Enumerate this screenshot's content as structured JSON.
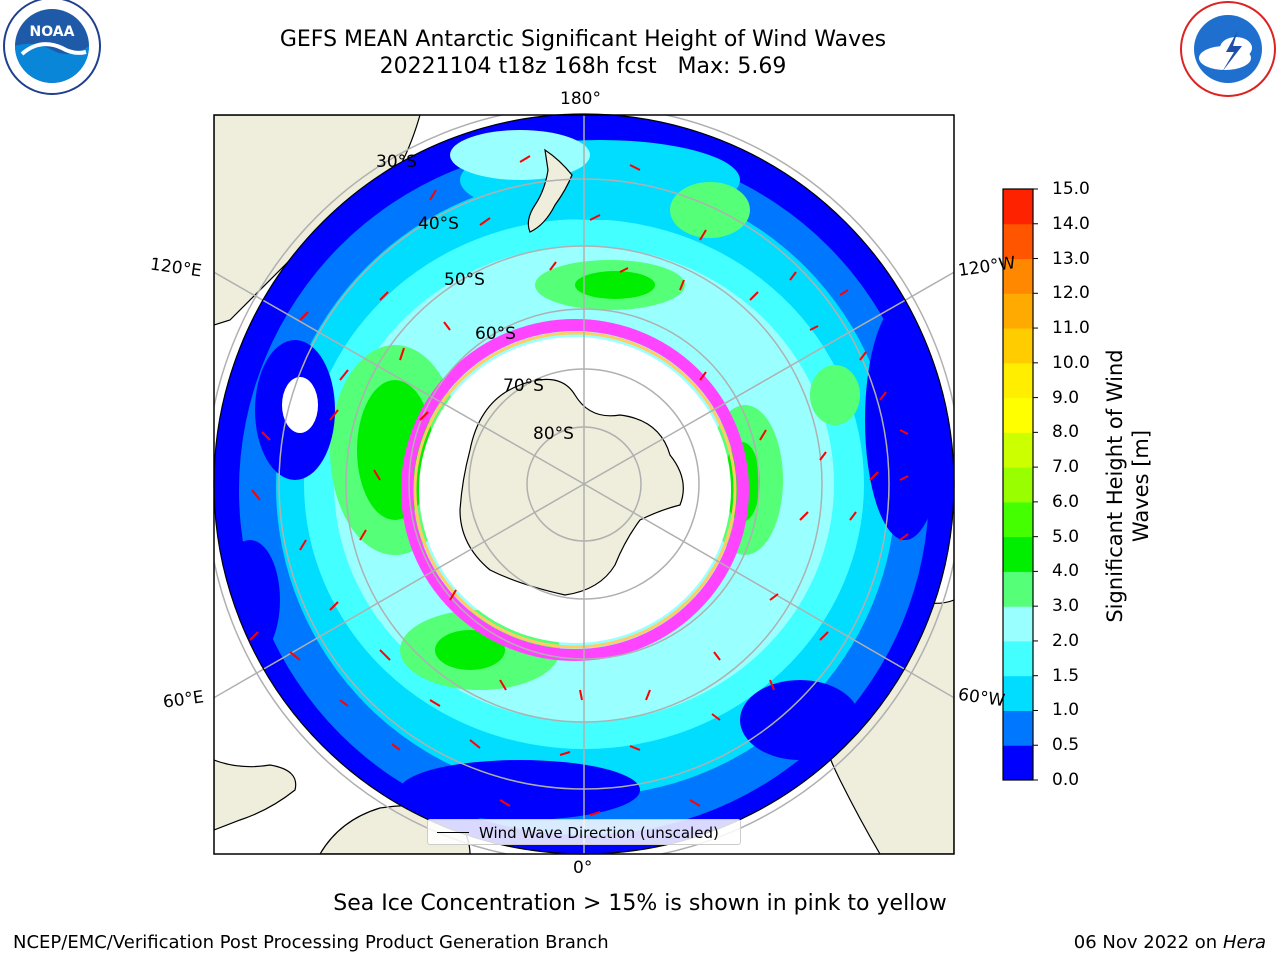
{
  "title": {
    "line1": "GEFS MEAN Antarctic Significant Height of Wind Waves",
    "line2": "20221104 t18z 168h fcst   Max: 5.69"
  },
  "logos": {
    "left": {
      "name": "noaa-logo",
      "text": "NOAA",
      "ring_text": "NATIONAL OCEANIC AND ATMOSPHERIC ADMINISTRATION · U.S. DEPARTMENT OF COMMERCE"
    },
    "right": {
      "name": "national-weather-service-logo",
      "ring_text": "NATIONAL WEATHER SERVICE"
    }
  },
  "map": {
    "projection": "south polar stereographic",
    "longitude_labels": {
      "top": "180°",
      "bottom": "0°",
      "left_upper": "120°E",
      "left_lower": "60°E",
      "right_upper": "120°W",
      "right_lower": "60°W"
    },
    "latitude_labels": [
      "30°S",
      "40°S",
      "50°S",
      "60°S",
      "70°S",
      "80°S"
    ],
    "land_color": "#efeddb",
    "sea_ice_colors": [
      "#ff44ff",
      "#ff99cc",
      "#ffcc66",
      "#ffff66"
    ],
    "arrow_color": "#ff0000"
  },
  "legend": {
    "label": "Wind Wave Direction (unscaled)"
  },
  "colorbar": {
    "label": "Significant Height of Wind Waves [m]",
    "ticks": [
      "0.0",
      "0.5",
      "1.0",
      "1.5",
      "2.0",
      "3.0",
      "4.0",
      "5.0",
      "6.0",
      "7.0",
      "8.0",
      "9.0",
      "10.0",
      "11.0",
      "12.0",
      "13.0",
      "14.0",
      "15.0"
    ],
    "colors": [
      "#0000ff",
      "#0077ff",
      "#00ddff",
      "#44ffff",
      "#99ffff",
      "#55ff77",
      "#00ee00",
      "#44ff00",
      "#99ff00",
      "#ccff00",
      "#ffff00",
      "#ffee00",
      "#ffcc00",
      "#ffaa00",
      "#ff8800",
      "#ff5500",
      "#ff2200"
    ]
  },
  "caption": "Sea Ice Concentration > 15% is shown in pink to yellow",
  "footer": {
    "left": "NCEP/EMC/Verification Post Processing Product Generation Branch",
    "right_date": "06 Nov 2022 on",
    "right_host": "Hera"
  }
}
